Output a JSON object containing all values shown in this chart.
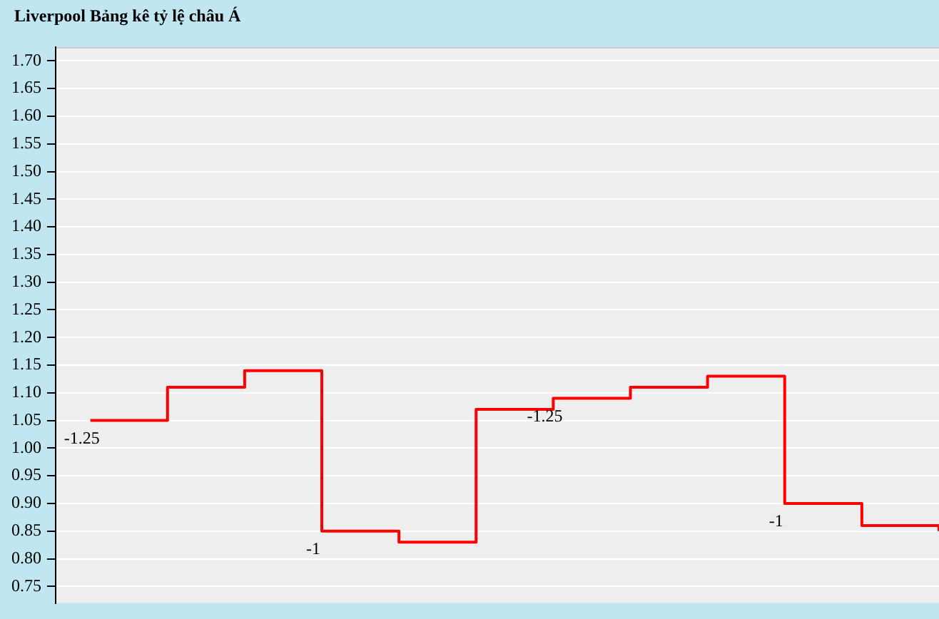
{
  "chart_data": {
    "type": "step",
    "title": "Liverpool Bảng kê tỷ lệ châu Á",
    "categories": [
      null,
      null,
      null,
      null,
      null,
      null,
      null,
      null,
      null,
      null,
      null,
      null
    ],
    "series": [
      {
        "color": "#ff0000",
        "values": [
          1.05,
          1.11,
          1.14,
          0.85,
          0.83,
          1.07,
          1.09,
          1.11,
          1.13,
          0.9,
          0.86,
          0.85
        ]
      }
    ],
    "annotations": [
      "-1.25",
      "-1",
      "-1.25",
      "-1"
    ],
    "ylim": [
      0.72,
      1.725
    ],
    "yticks": [
      {
        "value": 0.75,
        "label": "0.75"
      },
      {
        "value": 0.8,
        "label": "0.80"
      },
      {
        "value": 0.85,
        "label": "0.85"
      },
      {
        "value": 0.9,
        "label": "0.90"
      },
      {
        "value": 0.95,
        "label": "0.95"
      },
      {
        "value": 1,
        "label": "1.00"
      },
      {
        "value": 1.05,
        "label": "1.05"
      },
      {
        "value": 1.1,
        "label": "1.10"
      },
      {
        "value": 1.15,
        "label": "1.15"
      },
      {
        "value": 1.2,
        "label": "1.20"
      },
      {
        "value": 1.25,
        "label": "1.25"
      },
      {
        "value": 1.3,
        "label": "1.30"
      },
      {
        "value": 1.35,
        "label": "1.35"
      },
      {
        "value": 1.4,
        "label": "1.40"
      },
      {
        "value": 1.45,
        "label": "1.45"
      },
      {
        "value": 1.5,
        "label": "1.50"
      },
      {
        "value": 1.55,
        "label": "1.55"
      },
      {
        "value": 1.6,
        "label": "1.60"
      },
      {
        "value": 1.65,
        "label": "1.65"
      },
      {
        "value": 1.7,
        "label": "1.70"
      }
    ],
    "grid": "y",
    "legend": false,
    "marker": "none",
    "line_style": "solid"
  }
}
